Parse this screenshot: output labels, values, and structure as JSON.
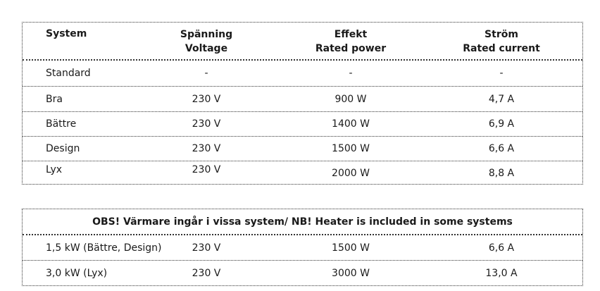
{
  "table1": {
    "headers": {
      "system": "System",
      "voltage_sv": "Spänning",
      "voltage_en": "Voltage",
      "power_sv": "Effekt",
      "power_en": "Rated power",
      "current_sv": "Ström",
      "current_en": "Rated current"
    },
    "rows": [
      {
        "system": "Standard",
        "voltage": "-",
        "power": "-",
        "current": "-"
      },
      {
        "system": "Bra",
        "voltage": "230 V",
        "power": "900 W",
        "current": "4,7 A"
      },
      {
        "system": "Bättre",
        "voltage": "230 V",
        "power": "1400 W",
        "current": "6,9 A"
      },
      {
        "system": "Design",
        "voltage": "230 V",
        "power": "1500 W",
        "current": "6,6 A"
      },
      {
        "system": "Lyx",
        "voltage": "230 V",
        "power": "2000 W",
        "current": "8,8 A"
      }
    ]
  },
  "table2": {
    "title": "OBS! Värmare ingår i vissa system/ NB! Heater is included in some systems",
    "rows": [
      {
        "system": "1,5 kW (Bättre, Design)",
        "voltage": "230 V",
        "power": "1500 W",
        "current": "6,6 A"
      },
      {
        "system": "3,0 kW (Lyx)",
        "voltage": "230 V",
        "power": "3000 W",
        "current": "13,0 A"
      }
    ]
  }
}
